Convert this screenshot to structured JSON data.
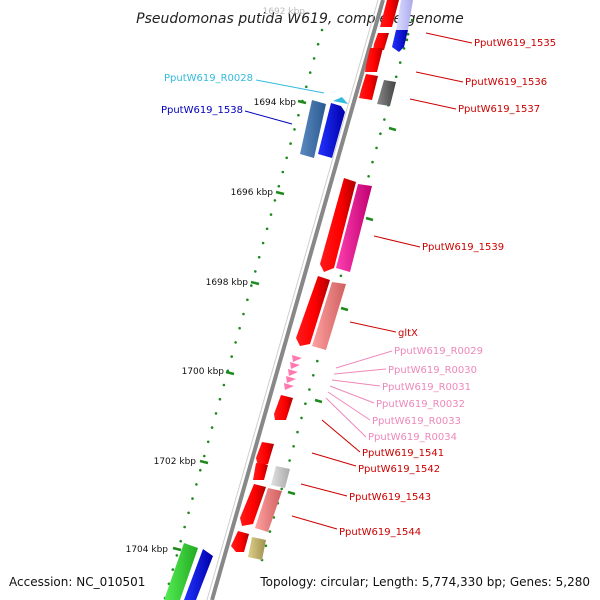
{
  "title": "Pseudomonas putida W619, complete genome",
  "faded_kbp": "1692 kbp",
  "kbp_labels": [
    "1694 kbp",
    "1696 kbp",
    "1698 kbp",
    "1700 kbp",
    "1702 kbp",
    "1704 kbp"
  ],
  "accession": "Accession: NC_010501",
  "topology": "Topology: circular; Length: 5,774,330 bp; Genes: 5,280",
  "left_labels": [
    {
      "text": "PputW619_R0028",
      "color": "#33bbdd"
    },
    {
      "text": "PputW619_1538",
      "color": "#0000bb"
    }
  ],
  "right_labels": [
    {
      "text": "PputW619_1535",
      "color": "#cc0000"
    },
    {
      "text": "PputW619_1536",
      "color": "#cc0000"
    },
    {
      "text": "PputW619_1537",
      "color": "#cc0000"
    },
    {
      "text": "PputW619_1539",
      "color": "#cc0000"
    },
    {
      "text": "gltX",
      "color": "#cc0000"
    },
    {
      "text": "PputW619_R0029",
      "color": "#ee88bb"
    },
    {
      "text": "PputW619_R0030",
      "color": "#ee88bb"
    },
    {
      "text": "PputW619_R0031",
      "color": "#ee88bb"
    },
    {
      "text": "PputW619_R0032",
      "color": "#ee88bb"
    },
    {
      "text": "PputW619_R0033",
      "color": "#ee88bb"
    },
    {
      "text": "PputW619_R0034",
      "color": "#ee88bb"
    },
    {
      "text": "PputW619_1541",
      "color": "#cc0000"
    },
    {
      "text": "PputW619_1542",
      "color": "#cc0000"
    },
    {
      "text": "PputW619_1543",
      "color": "#cc0000"
    },
    {
      "text": "PputW619_1544",
      "color": "#cc0000"
    }
  ]
}
